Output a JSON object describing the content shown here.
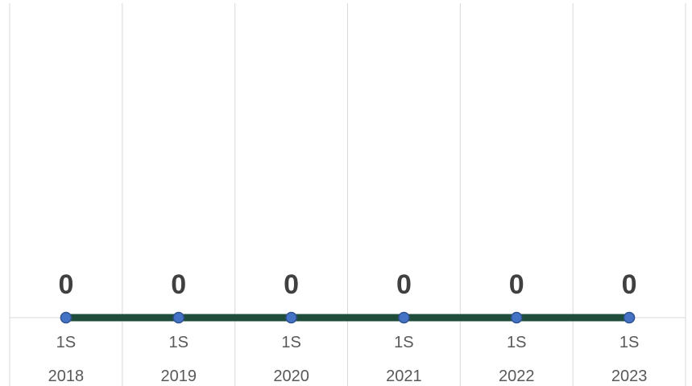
{
  "chart_data": {
    "type": "line",
    "categories": [
      {
        "period": "1S",
        "year": "2018"
      },
      {
        "period": "1S",
        "year": "2019"
      },
      {
        "period": "1S",
        "year": "2020"
      },
      {
        "period": "1S",
        "year": "2021"
      },
      {
        "period": "1S",
        "year": "2022"
      },
      {
        "period": "1S",
        "year": "2023"
      }
    ],
    "series": [
      {
        "values": [
          0,
          0,
          0,
          0,
          0,
          0
        ],
        "line_color": "#1e4d3b",
        "marker_color": "#4472c4",
        "marker_edge_color": "#2f528f"
      }
    ],
    "data_labels": [
      "0",
      "0",
      "0",
      "0",
      "0",
      "0"
    ],
    "title": "",
    "xlabel": "",
    "ylabel": "",
    "grid": "vertical",
    "legend": "none"
  }
}
